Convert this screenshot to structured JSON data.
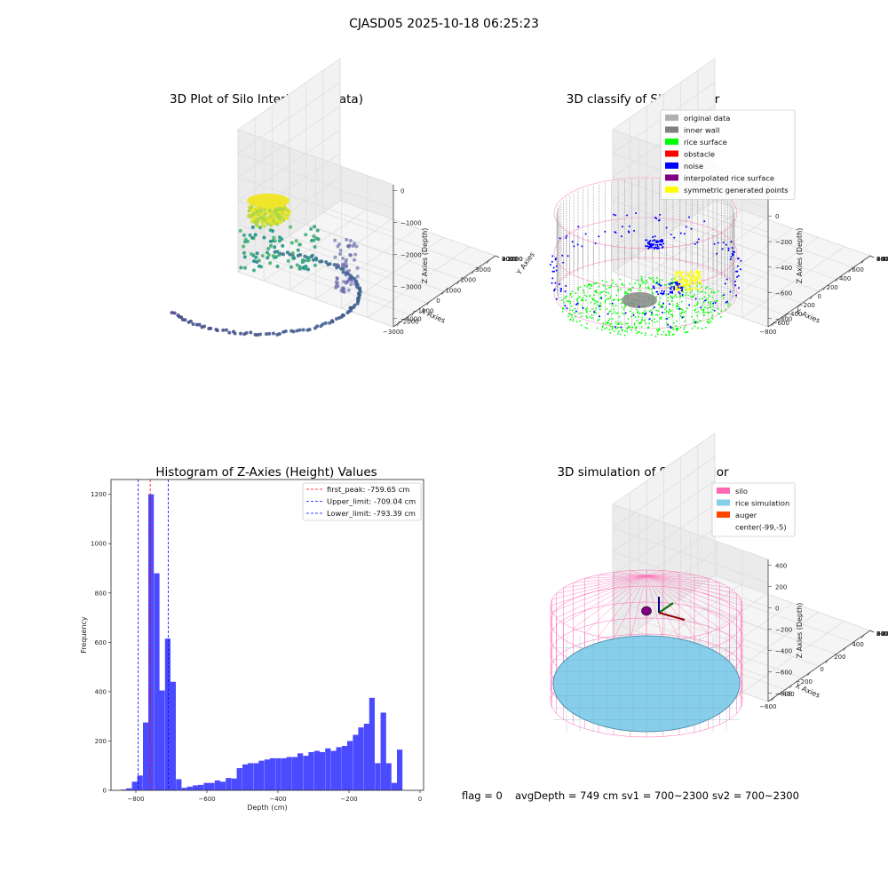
{
  "figure": {
    "suptitle": "CJASD05 2025-10-18 06:25:23",
    "footer": {
      "flag": "flag = 0",
      "avg_depth": "avgDepth = 749 cm",
      "sv1": "sv1 = 700~2300",
      "sv2": "sv2 = 700~2300"
    },
    "colors": {
      "silo": "#ff69b4",
      "rice_simulation": "#87ceeb",
      "auger": "#ff4500",
      "original_data": "#b0b0b0",
      "inner_wall": "#808080",
      "rice_surface": "#00ff00",
      "obstacle": "#ff0000",
      "noise": "#0000ff",
      "interpolated_rice_surface": "#800080",
      "symmetric_generated_points": "#ffff00",
      "histogram_bar": "#4a4aff"
    }
  },
  "chart_data": [
    {
      "type": "scatter",
      "projection": "3d",
      "title": "3D Plot of Silo Interior(row data)",
      "xlabel": "X Axies",
      "ylabel": "Y Axies",
      "zlabel": "Z Axies (Depth)",
      "x_ticks": [
        "−3000",
        "−2000",
        "−1000",
        "0",
        "1000",
        "2000",
        "3000"
      ],
      "y_ticks": [
        "3000",
        "2000",
        "1000",
        "0",
        "−1000",
        "−2000",
        "−3000"
      ],
      "z_ticks": [
        "0",
        "−1000",
        "−2000",
        "−3000",
        "−4000"
      ],
      "xlim": [
        -3000,
        3000
      ],
      "ylim": [
        -3000,
        3000
      ],
      "zlim": [
        -4000,
        0
      ],
      "colormap": "viridis",
      "grid": true
    },
    {
      "type": "scatter",
      "projection": "3d",
      "title": "3D classify of Silo Interior",
      "xlabel": "X Axies",
      "ylabel": "Y Axies",
      "zlabel": "Z Axies (Depth)",
      "x_ticks": [
        "−800",
        "−600",
        "−400",
        "−200",
        "0",
        "200",
        "400",
        "600"
      ],
      "y_ticks": [
        "600",
        "400",
        "200",
        "0",
        "−200",
        "−400",
        "−600"
      ],
      "z_ticks": [
        "200",
        "0",
        "−200",
        "−400",
        "−600",
        "−800"
      ],
      "legend": [
        {
          "label": "original data",
          "color": "#b0b0b0"
        },
        {
          "label": "inner wall",
          "color": "#808080"
        },
        {
          "label": "rice surface",
          "color": "#00ff00"
        },
        {
          "label": "obstacle",
          "color": "#ff0000"
        },
        {
          "label": "noise",
          "color": "#0000ff"
        },
        {
          "label": "interpolated rice surface",
          "color": "#800080"
        },
        {
          "label": "symmetric generated points",
          "color": "#ffff00"
        }
      ],
      "legend_loc": "upper right",
      "grid": true
    },
    {
      "type": "bar",
      "title": "Histogram of Z-Axies (Height) Values",
      "xlabel": "Depth (cm)",
      "ylabel": "Frequency",
      "xlim": [
        -870,
        10
      ],
      "ylim": [
        0,
        1260
      ],
      "x_ticks": [
        -800,
        -600,
        -400,
        -200,
        0
      ],
      "x_tick_labels": [
        "−800",
        "−600",
        "−400",
        "−200",
        "0"
      ],
      "y_ticks": [
        0,
        200,
        400,
        600,
        800,
        1000,
        1200
      ],
      "bin_width": 15.5,
      "bins": [
        {
          "x": -842,
          "y": 3
        },
        {
          "x": -827,
          "y": 8
        },
        {
          "x": -811,
          "y": 35
        },
        {
          "x": -796,
          "y": 60
        },
        {
          "x": -780,
          "y": 275
        },
        {
          "x": -765,
          "y": 1200
        },
        {
          "x": -749,
          "y": 880
        },
        {
          "x": -734,
          "y": 405
        },
        {
          "x": -718,
          "y": 615
        },
        {
          "x": -703,
          "y": 440
        },
        {
          "x": -687,
          "y": 45
        },
        {
          "x": -671,
          "y": 10
        },
        {
          "x": -656,
          "y": 15
        },
        {
          "x": -640,
          "y": 20
        },
        {
          "x": -625,
          "y": 22
        },
        {
          "x": -609,
          "y": 30
        },
        {
          "x": -594,
          "y": 30
        },
        {
          "x": -578,
          "y": 40
        },
        {
          "x": -563,
          "y": 35
        },
        {
          "x": -547,
          "y": 50
        },
        {
          "x": -531,
          "y": 48
        },
        {
          "x": -516,
          "y": 90
        },
        {
          "x": -500,
          "y": 105
        },
        {
          "x": -485,
          "y": 110
        },
        {
          "x": -469,
          "y": 110
        },
        {
          "x": -454,
          "y": 120
        },
        {
          "x": -438,
          "y": 125
        },
        {
          "x": -423,
          "y": 130
        },
        {
          "x": -407,
          "y": 130
        },
        {
          "x": -391,
          "y": 130
        },
        {
          "x": -376,
          "y": 135
        },
        {
          "x": -360,
          "y": 135
        },
        {
          "x": -345,
          "y": 150
        },
        {
          "x": -329,
          "y": 140
        },
        {
          "x": -314,
          "y": 155
        },
        {
          "x": -298,
          "y": 160
        },
        {
          "x": -283,
          "y": 155
        },
        {
          "x": -267,
          "y": 170
        },
        {
          "x": -251,
          "y": 160
        },
        {
          "x": -236,
          "y": 175
        },
        {
          "x": -220,
          "y": 180
        },
        {
          "x": -205,
          "y": 200
        },
        {
          "x": -189,
          "y": 225
        },
        {
          "x": -174,
          "y": 255
        },
        {
          "x": -158,
          "y": 270
        },
        {
          "x": -143,
          "y": 375
        },
        {
          "x": -127,
          "y": 110
        },
        {
          "x": -111,
          "y": 315
        },
        {
          "x": -96,
          "y": 110
        },
        {
          "x": -80,
          "y": 30
        },
        {
          "x": -65,
          "y": 165
        }
      ],
      "vlines": [
        {
          "label": "first_peak: -759.65 cm",
          "value": -759.65,
          "color": "#ff0000"
        },
        {
          "label": "Upper_limit: -709.04 cm",
          "value": -709.04,
          "color": "#0000ff"
        },
        {
          "label": "Lower_limit: -793.39 cm",
          "value": -793.39,
          "color": "#0000ff"
        }
      ],
      "legend_loc": "upper right"
    },
    {
      "type": "surface",
      "projection": "3d",
      "title": "3D simulation of Silo Interior",
      "xlabel": "X Axies",
      "ylabel": "Y Axies",
      "zlabel": "Z Axies (Depth)",
      "x_ticks": [
        "−600",
        "−400",
        "−200",
        "0",
        "200",
        "400"
      ],
      "y_ticks": [
        "600",
        "400",
        "200",
        "0",
        "−200",
        "−400",
        "−600"
      ],
      "z_ticks": [
        "400",
        "200",
        "0",
        "−200",
        "−400",
        "−600",
        "−800"
      ],
      "legend": [
        {
          "label": "silo",
          "color": "#ff69b4"
        },
        {
          "label": "rice simulation",
          "color": "#87ceeb"
        },
        {
          "label": "auger",
          "color": "#ff4500"
        },
        {
          "label": "center(-99,-5)",
          "color": ""
        }
      ],
      "legend_loc": "upper right",
      "grid": true
    }
  ]
}
